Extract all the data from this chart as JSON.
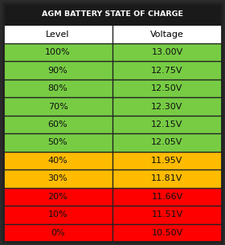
{
  "title": "AGM BATTERY STATE OF CHARGE",
  "header": [
    "Level",
    "Voltage"
  ],
  "rows": [
    {
      "level": "100%",
      "voltage": "13.00V",
      "color": "#77cc44"
    },
    {
      "level": "90%",
      "voltage": "12.75V",
      "color": "#77cc44"
    },
    {
      "level": "80%",
      "voltage": "12.50V",
      "color": "#77cc44"
    },
    {
      "level": "70%",
      "voltage": "12.30V",
      "color": "#77cc44"
    },
    {
      "level": "60%",
      "voltage": "12.15V",
      "color": "#77cc44"
    },
    {
      "level": "50%",
      "voltage": "12.05V",
      "color": "#77cc44"
    },
    {
      "level": "40%",
      "voltage": "11.95V",
      "color": "#ffbb00"
    },
    {
      "level": "30%",
      "voltage": "11.81V",
      "color": "#ffbb00"
    },
    {
      "level": "20%",
      "voltage": "11.66V",
      "color": "#ff0000"
    },
    {
      "level": "10%",
      "voltage": "11.51V",
      "color": "#ff0000"
    },
    {
      "level": "0%",
      "voltage": "10.50V",
      "color": "#ff0000"
    }
  ],
  "title_bg": "#1a1a1a",
  "title_color": "#ffffff",
  "header_bg": "#ffffff",
  "header_color": "#000000",
  "border_color": "#222222",
  "fig_bg": "#2a2a2a",
  "fig_width": 2.8,
  "fig_height": 3.05,
  "dpi": 100
}
